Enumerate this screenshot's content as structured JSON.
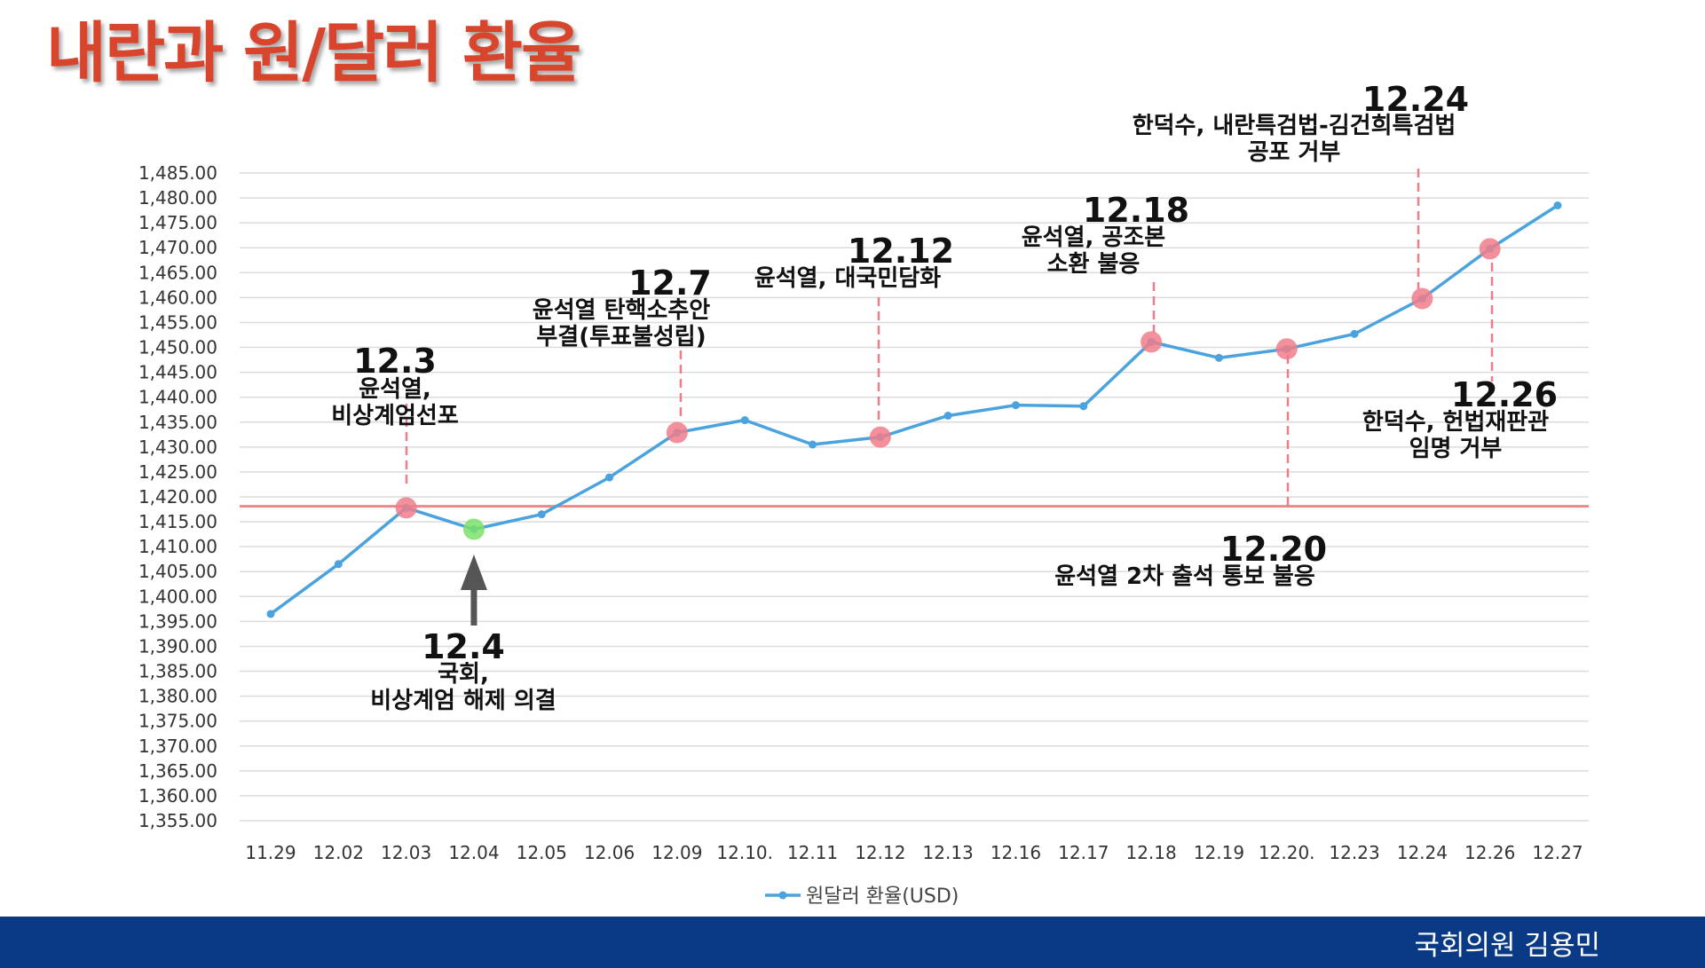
{
  "page": {
    "title": "내란과 원/달러 환율"
  },
  "footer": {
    "credit": "국회의원 김용민"
  },
  "chart_data": {
    "type": "line",
    "title": "내란과 원/달러 환율",
    "categories": [
      "11.29",
      "12.02",
      "12.03",
      "12.04",
      "12.05",
      "12.06",
      "12.09",
      "12.10.",
      "12.11",
      "12.12",
      "12.13",
      "12.16",
      "12.17",
      "12.18",
      "12.19",
      "12.20.",
      "12.23",
      "12.24",
      "12.26",
      "12.27"
    ],
    "series": [
      {
        "name": "원달러 환율(USD)",
        "values": [
          1396.5,
          1406.5,
          1417.8,
          1413.5,
          1416.5,
          1423.9,
          1432.9,
          1435.4,
          1430.5,
          1432.0,
          1436.3,
          1438.4,
          1438.2,
          1451.1,
          1447.9,
          1449.7,
          1452.7,
          1459.8,
          1469.8,
          1478.5
        ],
        "color": "#4aa3df"
      }
    ],
    "ylim": [
      1355,
      1485
    ],
    "ytick_labels": [
      "1,485.00",
      "1,480.00",
      "1,475.00",
      "1,470.00",
      "1,465.00",
      "1,460.00",
      "1,455.00",
      "1,450.00",
      "1,445.00",
      "1,440.00",
      "1,435.00",
      "1,430.00",
      "1,425.00",
      "1,420.00",
      "1,415.00",
      "1,410.00",
      "1,405.00",
      "1,400.00",
      "1,395.00",
      "1,390.00",
      "1,385.00",
      "1,380.00",
      "1,375.00",
      "1,370.00",
      "1,365.00",
      "1,360.00",
      "1,355.00"
    ],
    "ytick_values": [
      1485,
      1480,
      1475,
      1470,
      1465,
      1460,
      1455,
      1450,
      1445,
      1440,
      1435,
      1430,
      1425,
      1420,
      1415,
      1410,
      1405,
      1400,
      1395,
      1390,
      1385,
      1380,
      1375,
      1370,
      1365,
      1360,
      1355
    ],
    "reference_line": {
      "y": 1418.1,
      "color": "#e88a8a"
    },
    "grid": true,
    "legend": {
      "label": "원달러 환율(USD)",
      "position": "bottom-center"
    },
    "highlights": [
      {
        "index": 2,
        "color": "#f07c8a"
      },
      {
        "index": 3,
        "color": "#7be06a"
      },
      {
        "index": 6,
        "color": "#f07c8a"
      },
      {
        "index": 9,
        "color": "#f07c8a"
      },
      {
        "index": 13,
        "color": "#f07c8a"
      },
      {
        "index": 15,
        "color": "#f07c8a"
      },
      {
        "index": 17,
        "color": "#f07c8a"
      },
      {
        "index": 18,
        "color": "#f07c8a"
      }
    ],
    "annotations": [
      {
        "index": 2,
        "date": "12.3",
        "lines": [
          "윤석열,",
          "비상계엄선포"
        ]
      },
      {
        "index": 3,
        "date": "12.4",
        "lines": [
          "국회,",
          "비상계엄 해제 의결"
        ]
      },
      {
        "index": 6,
        "date": "12.7",
        "lines": [
          "윤석열 탄핵소추안",
          "부결(투표불성립)"
        ]
      },
      {
        "index": 9,
        "date": "12.12",
        "lines": [
          "윤석열, 대국민담화"
        ]
      },
      {
        "index": 13,
        "date": "12.18",
        "lines": [
          "윤석열, 공조본",
          "소환 불응"
        ]
      },
      {
        "index": 15,
        "date": "12.20",
        "lines": [
          "윤석열 2차 출석 통보 불응"
        ]
      },
      {
        "index": 17,
        "date": "12.24",
        "lines": [
          "한덕수, 내란특검법-김건희특검법",
          "공포 거부"
        ]
      },
      {
        "index": 18,
        "date": "12.26",
        "lines": [
          "한덕수, 헌법재판관",
          "임명 거부"
        ]
      }
    ]
  }
}
